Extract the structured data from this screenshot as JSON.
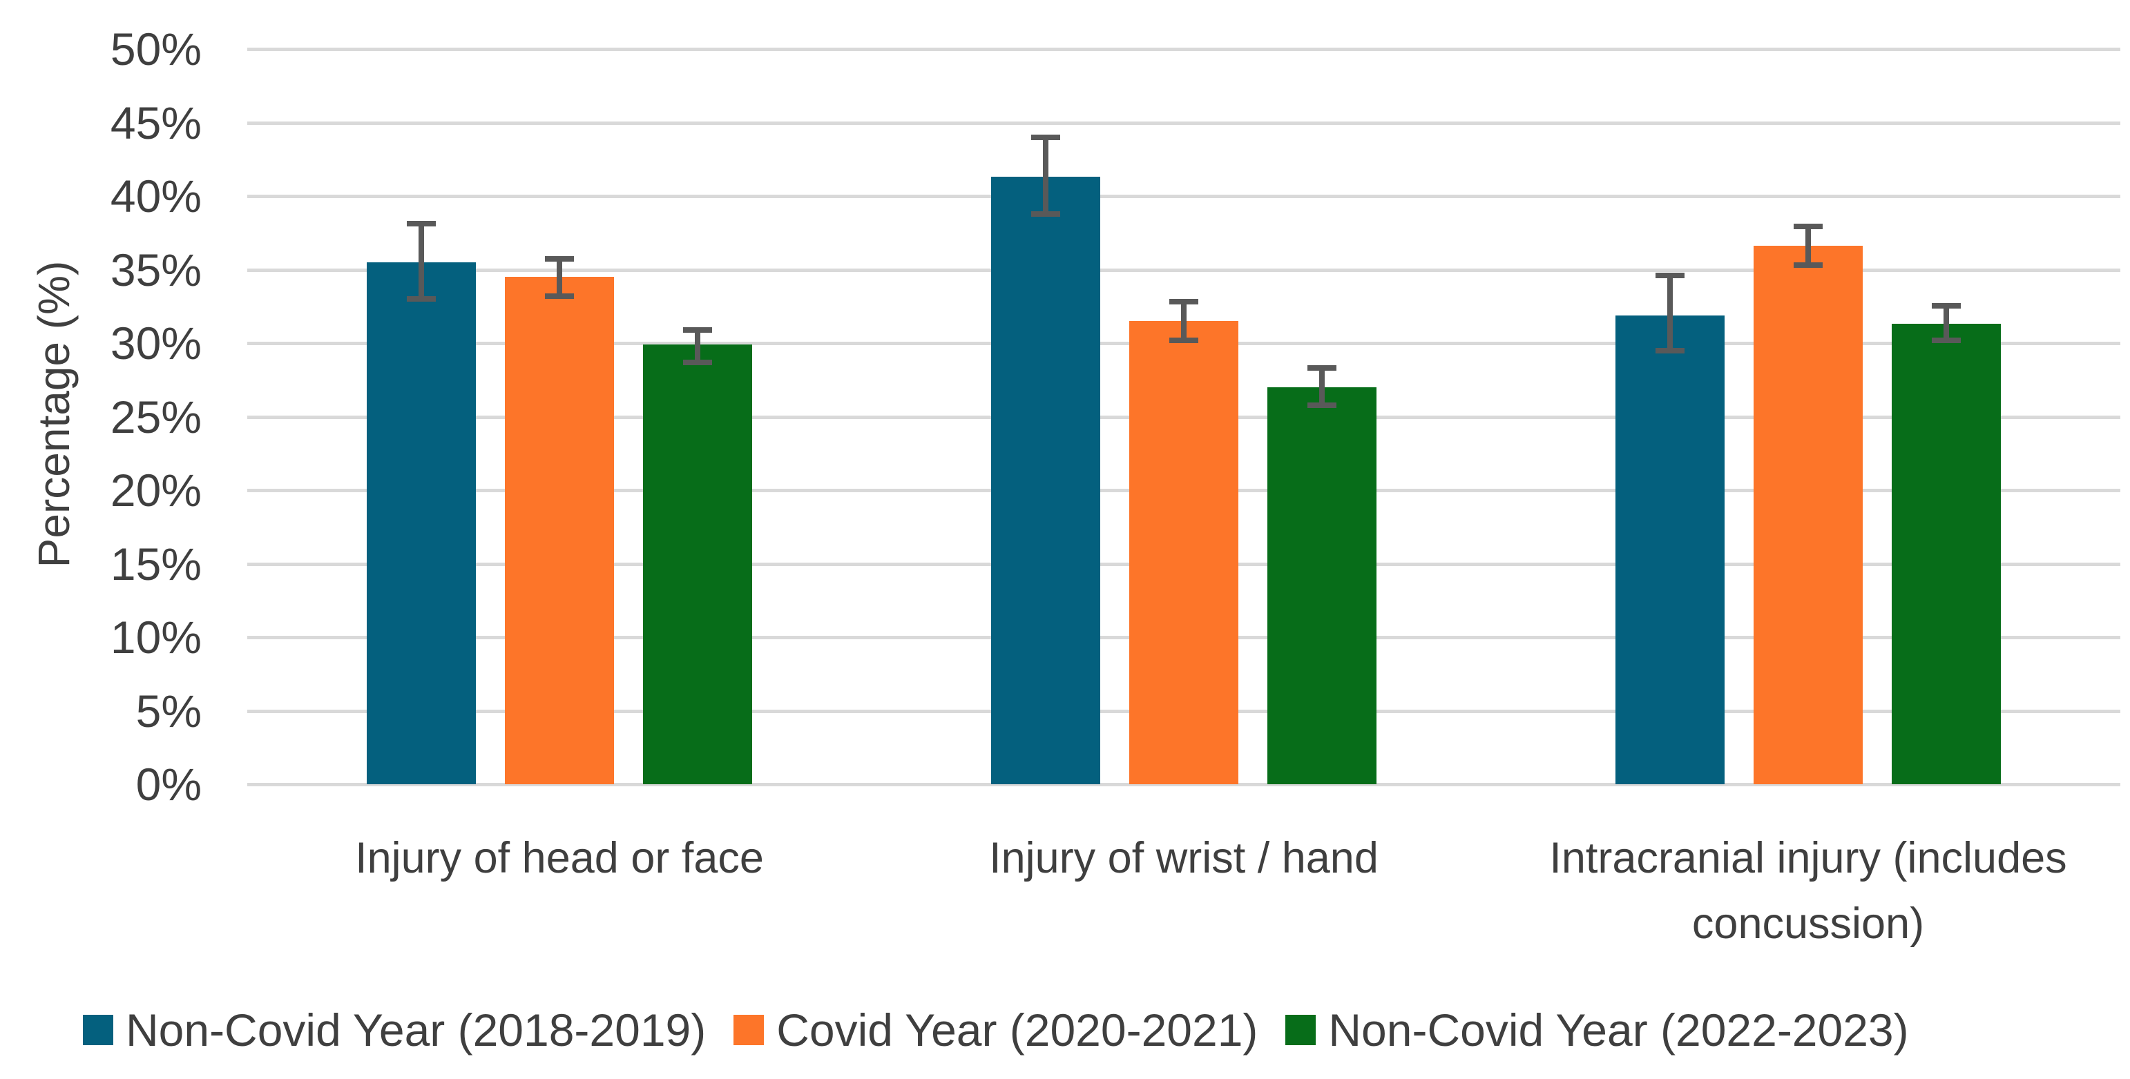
{
  "chart_data": {
    "type": "bar",
    "title": "",
    "xlabel": "",
    "ylabel": "Percentage (%)",
    "ylim": [
      0,
      50
    ],
    "ytick_step": 5,
    "y_tick_labels": [
      "0%",
      "5%",
      "10%",
      "15%",
      "20%",
      "25%",
      "30%",
      "35%",
      "40%",
      "45%",
      "50%"
    ],
    "grid": true,
    "legend_position": "bottom",
    "error_bars": true,
    "categories": [
      "Injury of head or face",
      "Injury of wrist / hand",
      "Intracranial injury (includes concussion)"
    ],
    "series": [
      {
        "name": "Non-Covid Year (2018-2019)",
        "color": "#04607E",
        "values": [
          35.5,
          41.3,
          31.9
        ],
        "error_low": [
          32.8,
          38.6,
          29.3
        ],
        "error_high": [
          38.3,
          44.2,
          34.8
        ]
      },
      {
        "name": "Covid Year (2020-2021)",
        "color": "#FD7529",
        "values": [
          34.5,
          31.5,
          36.6
        ],
        "error_low": [
          33.0,
          30.0,
          35.1
        ],
        "error_high": [
          35.9,
          33.0,
          38.1
        ]
      },
      {
        "name": "Non-Covid Year (2022-2023)",
        "color": "#076D19",
        "values": [
          29.9,
          27.0,
          31.3
        ],
        "error_low": [
          28.5,
          25.6,
          30.0
        ],
        "error_high": [
          31.1,
          28.5,
          32.7
        ]
      }
    ]
  },
  "colors": {
    "background": "#FFFFFF",
    "gridline": "#D9D9D9",
    "error_bar": "#595959",
    "text": "#3F3F3F"
  }
}
